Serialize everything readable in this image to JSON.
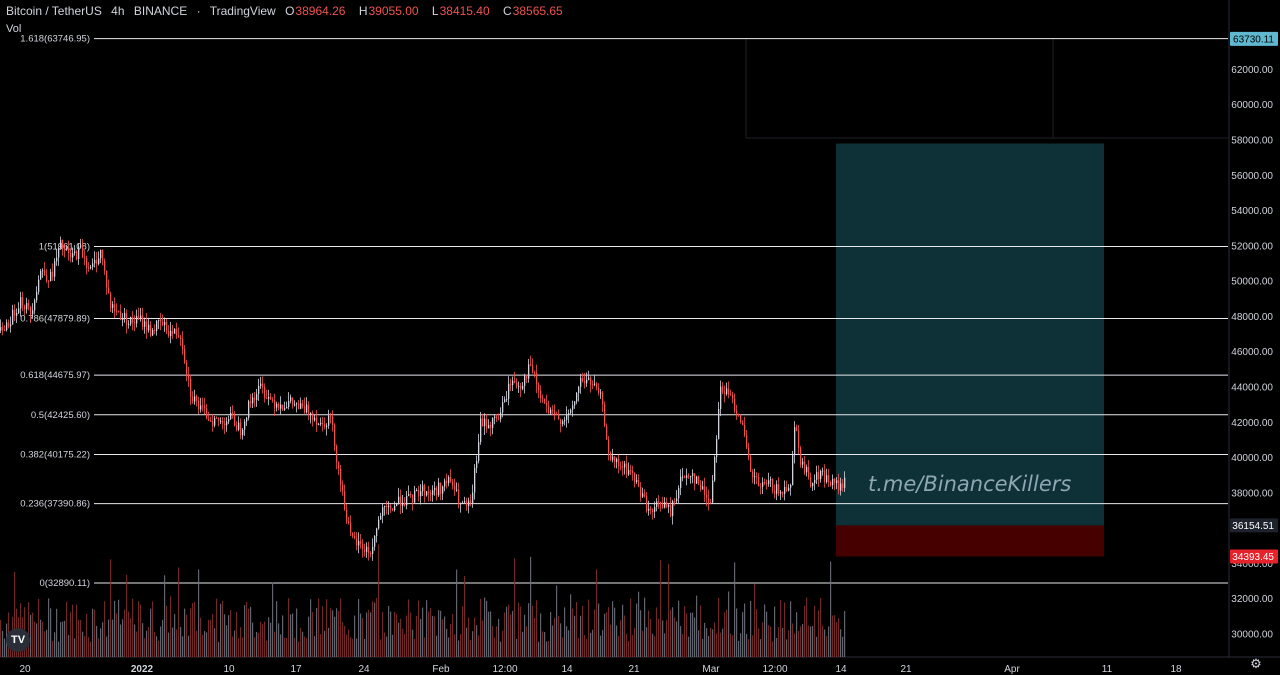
{
  "header": {
    "symbol": "Bitcoin / TetherUS",
    "interval": "4h",
    "exchange": "BINANCE",
    "platform": "TradingView",
    "open_label": "O",
    "open": "38964.26",
    "high_label": "H",
    "high": "39055.00",
    "low_label": "L",
    "low": "38415.40",
    "close_label": "C",
    "close": "38565.65"
  },
  "volume_label": "Vol",
  "watermark": "t.me/BinanceKillers",
  "colors": {
    "background": "#000000",
    "up": "#d1d4dc",
    "down": "#ef5350",
    "target_zone": "#0f3a3f",
    "stop_zone": "#4a0000",
    "badge_teal": "#5fb8d0",
    "badge_red": "#e8222a"
  },
  "chart_data": {
    "type": "candlestick",
    "title": "",
    "y_axis": {
      "ticks": [
        "62000.00",
        "60000.00",
        "58000.00",
        "56000.00",
        "54000.00",
        "52000.00",
        "50000.00",
        "48000.00",
        "46000.00",
        "44000.00",
        "42000.00",
        "40000.00",
        "38000.00",
        "36000.00",
        "34000.00",
        "32000.00",
        "30000.00"
      ],
      "range": [
        29500,
        64500
      ]
    },
    "x_axis": {
      "labels": [
        "20",
        "2022",
        "10",
        "17",
        "24",
        "Feb",
        "12:00",
        "14",
        "21",
        "Mar",
        "12:00",
        "14",
        "21",
        "Apr",
        "11",
        "18"
      ],
      "bold_labels": [
        "2022"
      ]
    },
    "fib_levels": [
      {
        "label": "1.618(63746.95)",
        "value": 63746.95
      },
      {
        "label": "1(51961.08)",
        "value": 51961.08
      },
      {
        "label": "0.786(47879.89)",
        "value": 47879.89
      },
      {
        "label": "0.618(44675.97)",
        "value": 44675.97
      },
      {
        "label": "0.5(42425.60)",
        "value": 42425.6
      },
      {
        "label": "0.382(40175.22)",
        "value": 40175.22
      },
      {
        "label": "0.236(37390.86)",
        "value": 37390.86
      },
      {
        "label": "0(32890.11)",
        "value": 32890.11
      }
    ],
    "price_badges": [
      {
        "text": "63730.11",
        "value": 63730.11,
        "color": "#5fb8d0"
      },
      {
        "text": "36154.51",
        "value": 36154.51,
        "color": "#1e222d"
      },
      {
        "text": "34393.45",
        "value": 34393.45,
        "color": "#e8222a"
      }
    ],
    "position": {
      "direction": "long",
      "entry": 36154.51,
      "target": 57800,
      "stop": 34393.45
    },
    "price_path": [
      [
        0,
        47200
      ],
      [
        10,
        47800
      ],
      [
        20,
        49000
      ],
      [
        30,
        48200
      ],
      [
        40,
        50600
      ],
      [
        50,
        50200
      ],
      [
        60,
        52000
      ],
      [
        70,
        51300
      ],
      [
        80,
        51800
      ],
      [
        90,
        50600
      ],
      [
        100,
        51700
      ],
      [
        110,
        48600
      ],
      [
        120,
        48100
      ],
      [
        130,
        47700
      ],
      [
        140,
        47800
      ],
      [
        150,
        47200
      ],
      [
        160,
        47600
      ],
      [
        170,
        47100
      ],
      [
        180,
        47000
      ],
      [
        190,
        43700
      ],
      [
        200,
        42700
      ],
      [
        210,
        42200
      ],
      [
        220,
        42000
      ],
      [
        230,
        42300
      ],
      [
        240,
        41600
      ],
      [
        250,
        43200
      ],
      [
        260,
        44000
      ],
      [
        270,
        43300
      ],
      [
        280,
        43000
      ],
      [
        290,
        43100
      ],
      [
        300,
        42800
      ],
      [
        310,
        42600
      ],
      [
        320,
        41900
      ],
      [
        330,
        42300
      ],
      [
        340,
        38600
      ],
      [
        350,
        35400
      ],
      [
        360,
        35000
      ],
      [
        370,
        34600
      ],
      [
        380,
        36800
      ],
      [
        390,
        37100
      ],
      [
        400,
        37600
      ],
      [
        410,
        37600
      ],
      [
        420,
        38200
      ],
      [
        430,
        38000
      ],
      [
        440,
        38300
      ],
      [
        450,
        38700
      ],
      [
        460,
        37300
      ],
      [
        470,
        37200
      ],
      [
        480,
        41900
      ],
      [
        490,
        41900
      ],
      [
        500,
        42500
      ],
      [
        510,
        44300
      ],
      [
        520,
        44100
      ],
      [
        530,
        45200
      ],
      [
        540,
        43400
      ],
      [
        550,
        42400
      ],
      [
        560,
        42200
      ],
      [
        570,
        42400
      ],
      [
        580,
        44400
      ],
      [
        590,
        44300
      ],
      [
        600,
        43400
      ],
      [
        610,
        39800
      ],
      [
        620,
        39500
      ],
      [
        630,
        39200
      ],
      [
        640,
        38100
      ],
      [
        650,
        36800
      ],
      [
        660,
        37500
      ],
      [
        670,
        36900
      ],
      [
        680,
        38700
      ],
      [
        690,
        39200
      ],
      [
        700,
        38300
      ],
      [
        710,
        37500
      ],
      [
        720,
        44000
      ],
      [
        730,
        43400
      ],
      [
        740,
        42300
      ],
      [
        750,
        39100
      ],
      [
        760,
        38300
      ],
      [
        770,
        38500
      ],
      [
        780,
        37900
      ],
      [
        790,
        38700
      ],
      [
        795,
        42300
      ],
      [
        800,
        39800
      ],
      [
        810,
        38700
      ],
      [
        820,
        39100
      ],
      [
        830,
        38600
      ],
      [
        840,
        38300
      ],
      [
        845,
        38600
      ]
    ]
  }
}
